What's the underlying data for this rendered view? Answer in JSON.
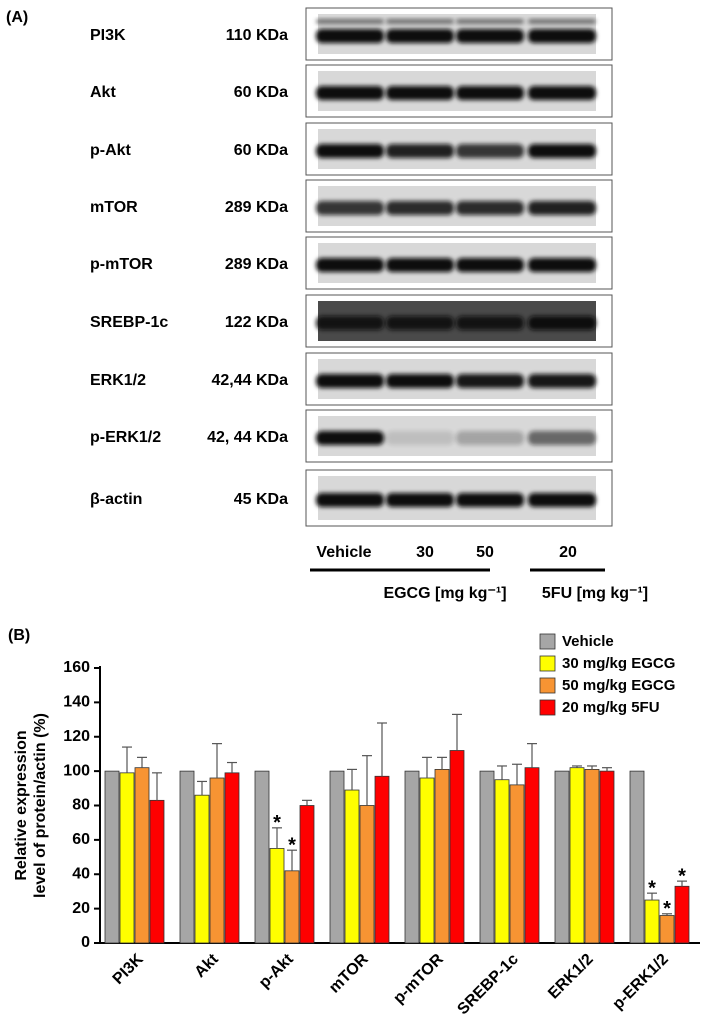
{
  "panel_a": {
    "label": "(A)",
    "rows": [
      {
        "protein": "PI3K",
        "size": "110 KDa"
      },
      {
        "protein": "Akt",
        "size": "60 KDa"
      },
      {
        "protein": "p-Akt",
        "size": "60 KDa"
      },
      {
        "protein": "mTOR",
        "size": "289 KDa"
      },
      {
        "protein": "p-mTOR",
        "size": "289 KDa"
      },
      {
        "protein": "SREBP-1c",
        "size": "122 KDa"
      },
      {
        "protein": "ERK1/2",
        "size": "42,44 KDa"
      },
      {
        "protein": "p-ERK1/2",
        "size": "42, 44 KDa"
      },
      {
        "protein": "β-actin",
        "size": "45 KDa"
      }
    ],
    "lanes": [
      "Vehicle",
      "30",
      "50",
      "20"
    ],
    "groups": [
      "EGCG [mg kg⁻¹]",
      "5FU [mg kg⁻¹]"
    ]
  },
  "chart_data": {
    "type": "bar",
    "panel_label": "(B)",
    "ylabel": [
      "Relative expression",
      "level of protein/actin (%)"
    ],
    "categories": [
      "PI3K",
      "Akt",
      "p-Akt",
      "mTOR",
      "p-mTOR",
      "SREBP-1c",
      "ERK1/2",
      "p-ERK1/2"
    ],
    "series": [
      {
        "name": "Vehicle",
        "color": "#a6a6a6",
        "values": [
          100,
          100,
          100,
          100,
          100,
          100,
          100,
          100
        ]
      },
      {
        "name": "30 mg/kg EGCG",
        "color": "#ffff00",
        "values": [
          99,
          86,
          55,
          89,
          96,
          95,
          102,
          25
        ],
        "errors": [
          15,
          8,
          12,
          12,
          12,
          8,
          1,
          4
        ],
        "stars": [
          null,
          null,
          "*",
          null,
          null,
          null,
          null,
          "*"
        ]
      },
      {
        "name": "50 mg/kg EGCG",
        "color": "#f79433",
        "values": [
          102,
          96,
          42,
          80,
          101,
          92,
          101,
          16
        ],
        "errors": [
          6,
          20,
          12,
          29,
          7,
          12,
          2,
          1
        ],
        "stars": [
          null,
          null,
          "*",
          null,
          null,
          null,
          null,
          "*"
        ]
      },
      {
        "name": "20 mg/kg 5FU",
        "color": "#ff0000",
        "values": [
          83,
          99,
          80,
          97,
          112,
          102,
          100,
          33
        ],
        "errors": [
          16,
          6,
          3,
          31,
          21,
          14,
          2,
          3
        ],
        "stars": [
          null,
          null,
          null,
          null,
          null,
          null,
          null,
          "*"
        ]
      }
    ],
    "ylim": [
      0,
      160
    ],
    "yticks": [
      0,
      20,
      40,
      60,
      80,
      100,
      120,
      140,
      160
    ],
    "legend": "upper right"
  }
}
